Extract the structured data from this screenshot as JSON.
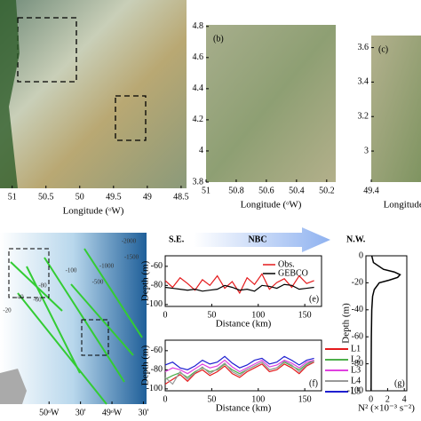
{
  "header": {
    "left": "S.E.",
    "arrow": "NBC",
    "right": "N.W."
  },
  "chart_data": [
    {
      "type": "image",
      "xlabel": "Longitude (ᵒW)",
      "xlim": [
        51.18,
        48.42
      ],
      "xticks": [
        51,
        50.5,
        50,
        49.5,
        49,
        48.5
      ]
    },
    {
      "type": "image",
      "label": "(b)",
      "xlabel": "Longitude (ᵒW)",
      "xlim": [
        51,
        50.14
      ],
      "xticks": [
        51,
        50.8,
        50.6,
        50.4,
        50.2
      ],
      "ylim": [
        3.8,
        4.81
      ],
      "yticks": [
        3.8,
        4,
        4.2,
        4.4,
        4.6,
        4.8
      ]
    },
    {
      "type": "image",
      "label": "(c)",
      "xlabel": "Longitude (ᵒW)",
      "xlim": [
        49.4,
        49.1
      ],
      "xticks": [
        49.4
      ],
      "ylim": [
        2.82,
        3.67
      ],
      "yticks": [
        3,
        3.2,
        3.4,
        3.6
      ]
    },
    {
      "type": "map",
      "xlim": [
        50.78,
        48.45
      ],
      "xticks": [
        {
          "value": 50,
          "label": "50ᵒW"
        },
        {
          "value": 49.5,
          "label": "30'"
        },
        {
          "value": 49,
          "label": "49ᵒW"
        },
        {
          "value": 48.5,
          "label": "30'"
        }
      ],
      "annotations": [
        "-2000",
        "-1500",
        "-1000",
        "-500",
        "-100",
        "-80",
        "-60",
        "-40",
        "-20"
      ]
    },
    {
      "type": "line",
      "label": "(e)",
      "xlabel": "Distance (km)",
      "ylabel": "Depth (m)",
      "xlim": [
        0,
        168
      ],
      "xticks": [
        0,
        50,
        100,
        150
      ],
      "ylim": [
        -102,
        -49
      ],
      "yticks": [
        -60,
        -80,
        -100
      ],
      "x": [
        0,
        8,
        16,
        24,
        32,
        40,
        48,
        56,
        64,
        72,
        80,
        88,
        96,
        104,
        112,
        120,
        128,
        136,
        144,
        152,
        160
      ],
      "series": [
        {
          "name": "Obs.",
          "color": "#e41a1c",
          "values": [
            -75,
            -82,
            -72,
            -78,
            -85,
            -74,
            -80,
            -70,
            -83,
            -76,
            -88,
            -72,
            -79,
            -68,
            -84,
            -77,
            -73,
            -82,
            -70,
            -78,
            -75
          ]
        },
        {
          "name": "GEBCO",
          "color": "#000000",
          "values": [
            -82,
            -83,
            -84,
            -85,
            -84,
            -86,
            -85,
            -84,
            -80,
            -82,
            -85,
            -84,
            -86,
            -80,
            -81,
            -83,
            -79,
            -80,
            -84,
            -83,
            -82
          ]
        }
      ]
    },
    {
      "type": "line",
      "label": "(f)",
      "xlabel": "Distance (km)",
      "ylabel": "Depth (m)",
      "xlim": [
        0,
        168
      ],
      "xticks": [
        0,
        50,
        100,
        150
      ],
      "ylim": [
        -102,
        -49
      ],
      "yticks": [
        -60,
        -80,
        -100
      ],
      "x": [
        0,
        8,
        16,
        24,
        32,
        40,
        48,
        56,
        64,
        72,
        80,
        88,
        96,
        104,
        112,
        120,
        128,
        136,
        144,
        152,
        160
      ],
      "series": [
        {
          "name": "L1",
          "color": "#e41a1c",
          "values": [
            -95,
            -90,
            -85,
            -92,
            -84,
            -80,
            -86,
            -82,
            -76,
            -84,
            -88,
            -82,
            -78,
            -74,
            -82,
            -80,
            -74,
            -78,
            -84,
            -76,
            -72
          ]
        },
        {
          "name": "L2",
          "color": "#4daf4a",
          "values": [
            -90,
            -86,
            -83,
            -88,
            -82,
            -78,
            -82,
            -80,
            -74,
            -80,
            -84,
            -80,
            -76,
            -72,
            -80,
            -78,
            -72,
            -76,
            -80,
            -74,
            -70
          ]
        },
        {
          "name": "L3",
          "color": "#e040e0",
          "values": [
            -82,
            -78,
            -80,
            -84,
            -79,
            -74,
            -78,
            -76,
            -70,
            -77,
            -82,
            -78,
            -74,
            -70,
            -77,
            -75,
            -70,
            -73,
            -78,
            -72,
            -70
          ]
        },
        {
          "name": "L4",
          "color": "#999999",
          "values": [
            -88,
            -95,
            -82,
            -90,
            -83,
            -77,
            -84,
            -79,
            -73,
            -82,
            -86,
            -80,
            -76,
            -72,
            -80,
            -78,
            -71,
            -75,
            -82,
            -75,
            -71
          ]
        },
        {
          "name": "L5",
          "color": "#1f1fd0",
          "values": [
            -75,
            -72,
            -78,
            -80,
            -76,
            -70,
            -74,
            -72,
            -66,
            -73,
            -78,
            -75,
            -70,
            -68,
            -74,
            -72,
            -66,
            -70,
            -75,
            -70,
            -68
          ]
        }
      ]
    },
    {
      "type": "profile",
      "label": "(g)",
      "xlabel": "N² (×10⁻³ s⁻²)",
      "ylabel": "Depth (m)",
      "xlim": [
        -0.6,
        4.3
      ],
      "xticks": [
        0,
        2,
        4
      ],
      "ylim": [
        -100,
        0
      ],
      "yticks": [
        0,
        -20,
        -40,
        -60,
        -80,
        -100
      ],
      "y": [
        0,
        -5,
        -10,
        -12,
        -14,
        -16,
        -18,
        -20,
        -25,
        -30,
        -40,
        -60,
        -80,
        -100
      ],
      "series": [
        {
          "color": "#000000",
          "values": [
            0.1,
            0.3,
            1.5,
            2.8,
            3.5,
            3.2,
            2.2,
            1.0,
            0.4,
            0.2,
            0.1,
            0.05,
            0.03,
            0.02
          ]
        }
      ]
    }
  ]
}
